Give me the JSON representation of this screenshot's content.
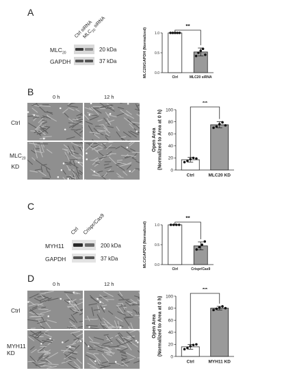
{
  "panels": {
    "A": {
      "letter": "A",
      "blot": {
        "lane_labels": [
          "Ctrl siRNA",
          "MLC20 siRNA"
        ],
        "rows": [
          {
            "protein": "MLC20",
            "size": "20 kDa"
          },
          {
            "protein": "GAPDH",
            "size": "37 kDa"
          }
        ]
      },
      "sig": "**"
    },
    "B": {
      "letter": "B",
      "time_labels": [
        "0 h",
        "12 h"
      ],
      "row_labels": [
        "Ctrl",
        "MLC20 KD"
      ],
      "sig": "**"
    },
    "C": {
      "letter": "C",
      "blot": {
        "lane_labels": [
          "Ctrl",
          "Crispr/Cas9"
        ],
        "rows": [
          {
            "protein": "MYH11",
            "size": "200 kDa"
          },
          {
            "protein": "GAPDH",
            "size": "37 kDa"
          }
        ]
      },
      "sig": "**"
    },
    "D": {
      "letter": "D",
      "time_labels": [
        "0 h",
        "12 h"
      ],
      "row_labels": [
        "Ctrl",
        "MYH11 KD"
      ],
      "sig": "**"
    }
  },
  "chart_data": [
    {
      "panel": "A",
      "type": "bar",
      "ylabel": "MLC20/GAPDH (Normalized)",
      "categories": [
        "Ctrl",
        "MLC20 siRNA"
      ],
      "values": [
        1.0,
        0.52
      ],
      "errors": [
        0.0,
        0.1
      ],
      "points": [
        [
          1.0,
          1.0,
          1.0,
          1.0,
          1.0
        ],
        [
          0.42,
          0.5,
          0.55,
          0.6,
          0.45
        ]
      ],
      "ylim": [
        0,
        1.0
      ],
      "yticks": [
        "0.0",
        "0.5",
        "1.0"
      ],
      "bar_colors": [
        "#ffffff",
        "#9a9a9a"
      ]
    },
    {
      "panel": "B",
      "type": "bar",
      "ylabel": "Open Area (Normalized to Area at 0 h)",
      "categories": [
        "Ctrl",
        "MLC20 KD"
      ],
      "values": [
        17,
        75
      ],
      "errors": [
        4,
        5
      ],
      "points": [
        [
          13,
          15,
          18,
          20,
          19
        ],
        [
          70,
          72,
          76,
          79,
          74
        ]
      ],
      "ylim": [
        0,
        100
      ],
      "yticks": [
        "0",
        "20",
        "40",
        "60",
        "80",
        "100"
      ],
      "bar_colors": [
        "#ffffff",
        "#9a9a9a"
      ]
    },
    {
      "panel": "C",
      "type": "bar",
      "ylabel": "MLC/GAPDH (Normalized)",
      "categories": [
        "Ctrl",
        "Crispr/Cas9"
      ],
      "values": [
        1.0,
        0.47
      ],
      "errors": [
        0.0,
        0.1
      ],
      "points": [
        [
          1.0,
          1.0,
          1.0,
          1.0
        ],
        [
          0.38,
          0.44,
          0.5,
          0.58
        ]
      ],
      "ylim": [
        0,
        1.0
      ],
      "yticks": [
        "0.0",
        "0.5",
        "1.0"
      ],
      "bar_colors": [
        "#ffffff",
        "#9a9a9a"
      ]
    },
    {
      "panel": "D",
      "type": "bar",
      "ylabel": "Open Area (Normalized to Area at 0 h)",
      "categories": [
        "Ctrl",
        "MYH11 KD"
      ],
      "values": [
        16,
        80
      ],
      "errors": [
        4,
        3
      ],
      "points": [
        [
          12,
          14,
          17,
          19,
          20
        ],
        [
          77,
          79,
          81,
          83,
          80
        ]
      ],
      "ylim": [
        0,
        100
      ],
      "yticks": [
        "0",
        "20",
        "40",
        "60",
        "80",
        "100"
      ],
      "bar_colors": [
        "#ffffff",
        "#9a9a9a"
      ]
    }
  ]
}
